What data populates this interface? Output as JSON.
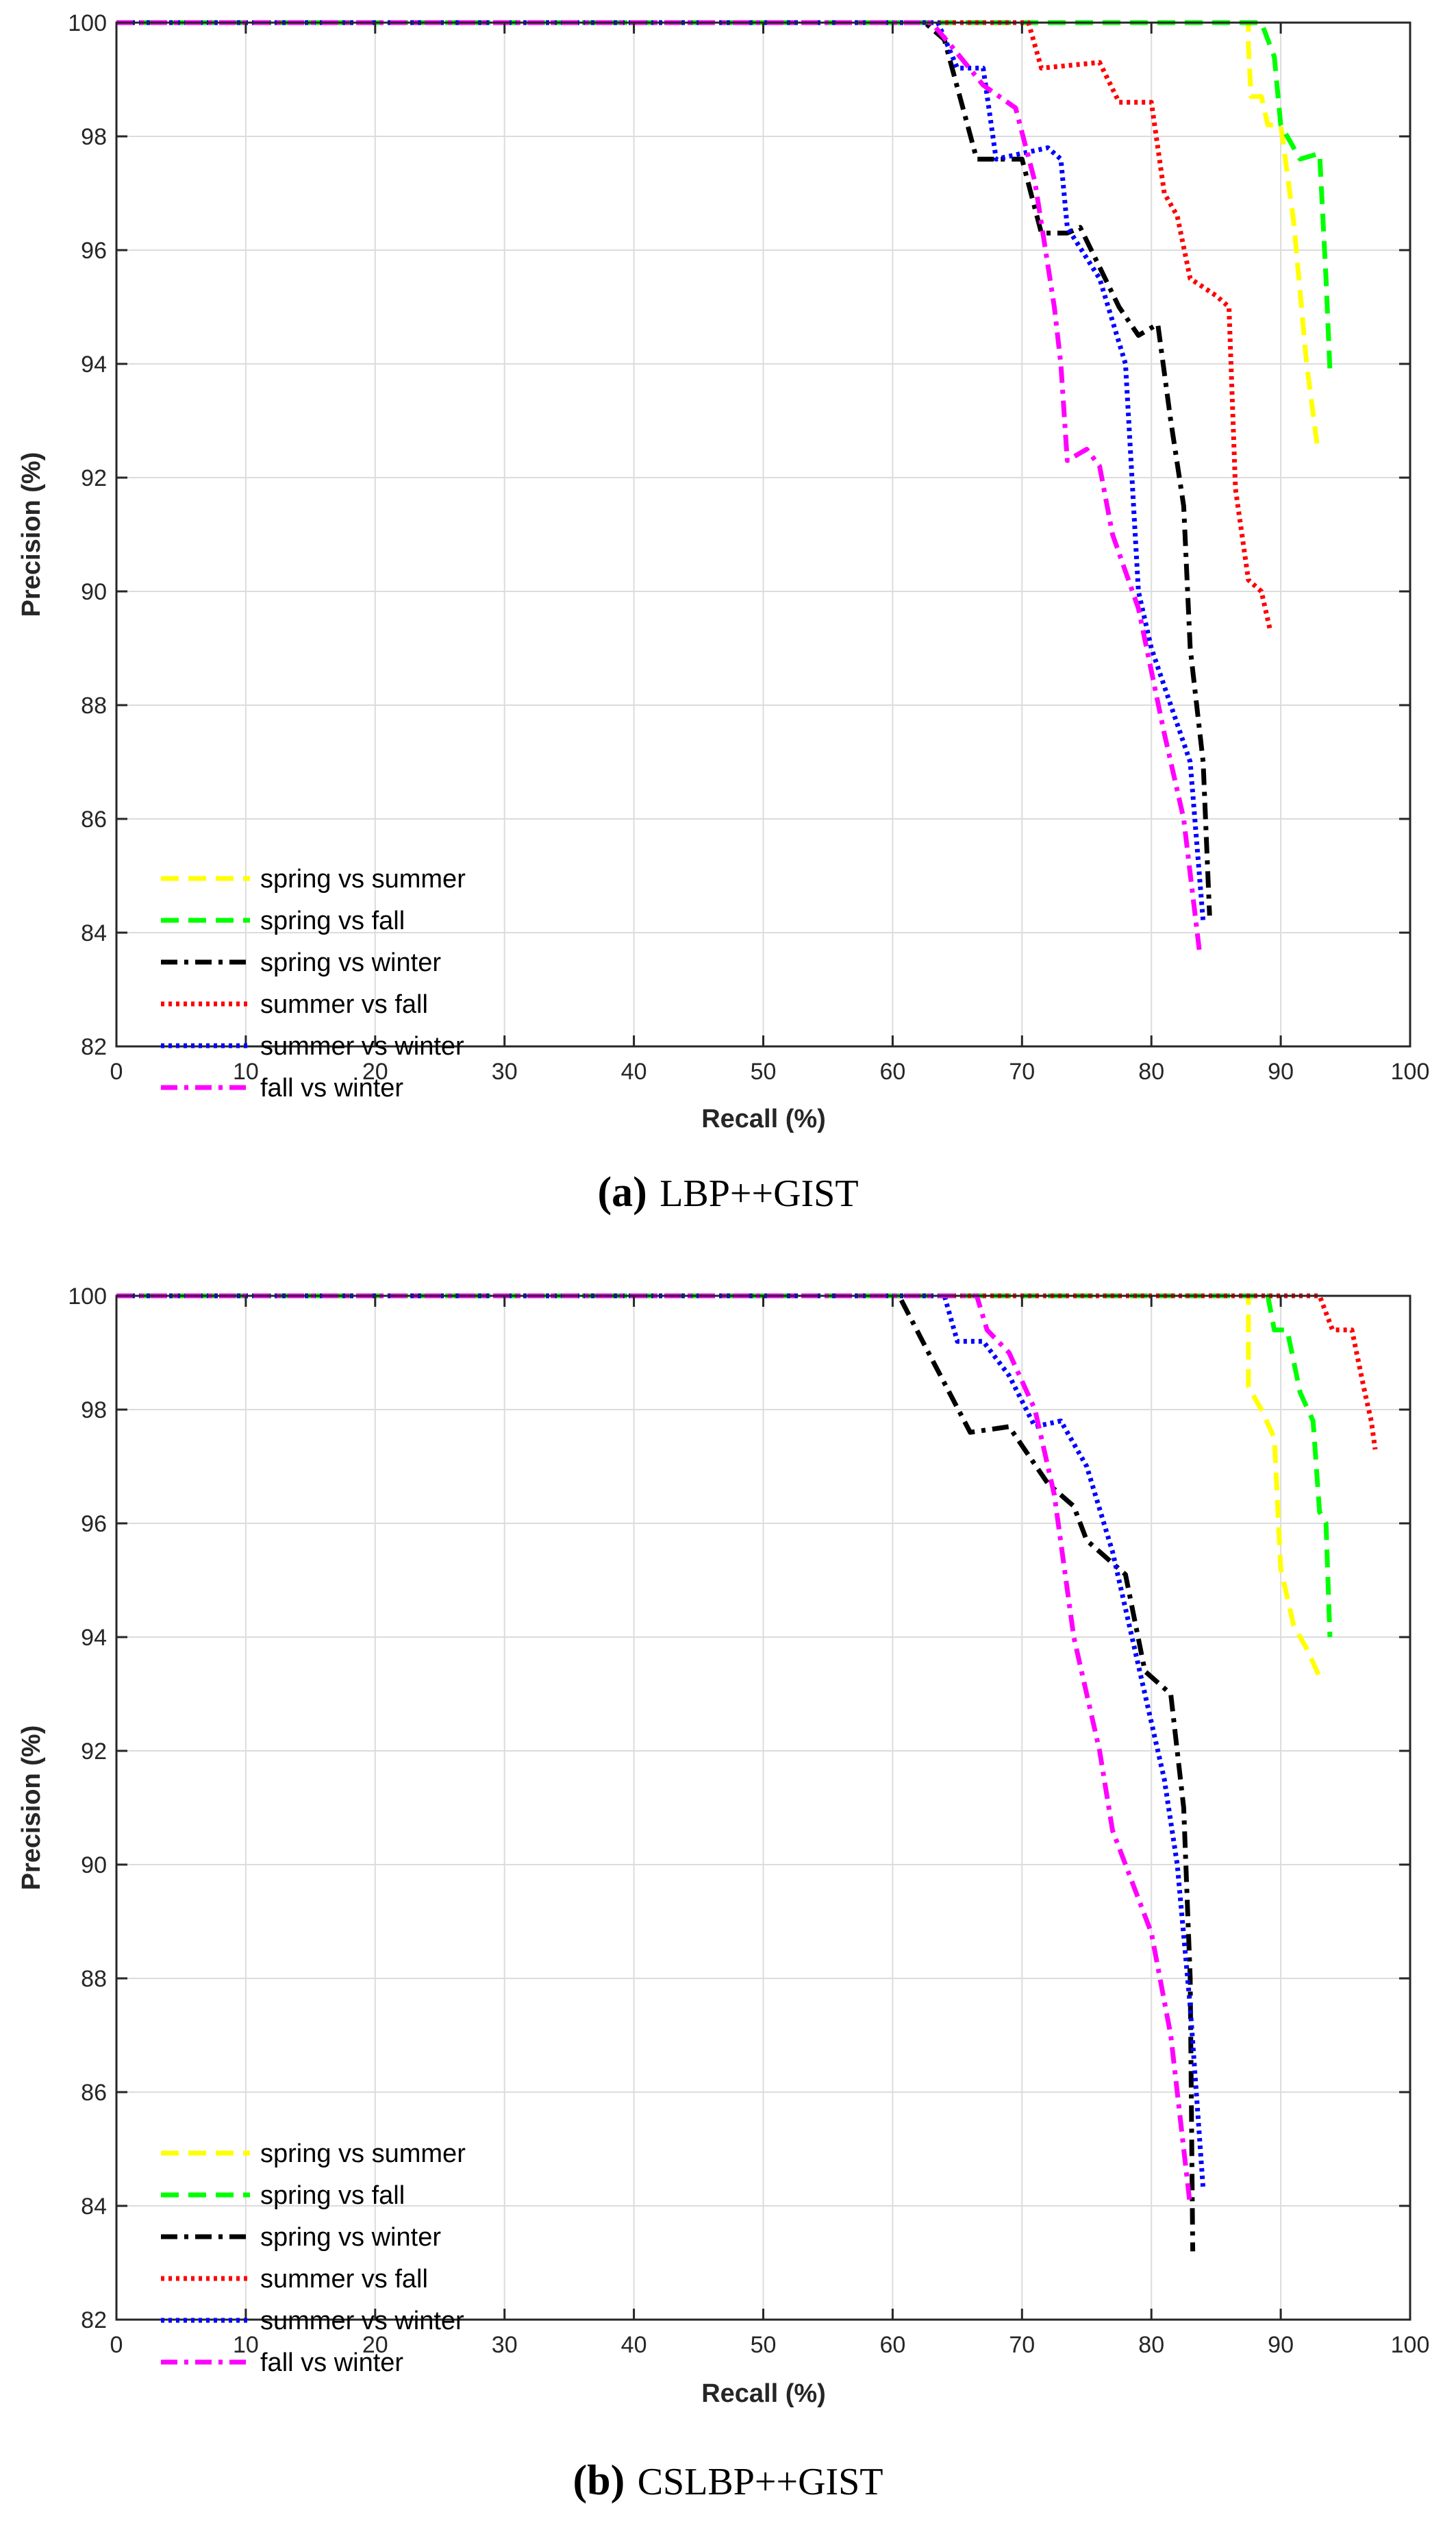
{
  "figure": {
    "captions": [
      {
        "label": "(a)",
        "text": "LBP++GIST"
      },
      {
        "label": "(b)",
        "text": "CSLBP++GIST"
      }
    ]
  },
  "colors": {
    "spring_vs_summer": "#ffff00",
    "spring_vs_fall": "#00ff00",
    "spring_vs_winter": "#000000",
    "summer_vs_fall": "#ff0000",
    "summer_vs_winter": "#0000ff",
    "fall_vs_winter": "#ff00ff"
  },
  "chart_data": [
    {
      "type": "line",
      "title": "LBP++GIST",
      "xlabel": "Recall (%)",
      "ylabel": "Precision (%)",
      "xlim": [
        0,
        100
      ],
      "ylim": [
        82,
        100
      ],
      "xticks": [
        0,
        10,
        20,
        30,
        40,
        50,
        60,
        70,
        80,
        90,
        100
      ],
      "yticks": [
        82,
        84,
        86,
        88,
        90,
        92,
        94,
        96,
        98,
        100
      ],
      "grid": true,
      "legend_position": "bottom-left",
      "series": [
        {
          "name": "spring vs summer",
          "style": "dashed",
          "color": "#ffff00",
          "points": [
            [
              0,
              100
            ],
            [
              87.5,
              100
            ],
            [
              87.5,
              99.6
            ],
            [
              87.7,
              98.7
            ],
            [
              88.5,
              98.7
            ],
            [
              89,
              98.2
            ],
            [
              90,
              98.2
            ],
            [
              91,
              96.5
            ],
            [
              92,
              94
            ],
            [
              92.8,
              92.6
            ]
          ]
        },
        {
          "name": "spring vs fall",
          "style": "dashed",
          "color": "#00ff00",
          "points": [
            [
              0,
              100
            ],
            [
              88.5,
              100
            ],
            [
              89.5,
              99.4
            ],
            [
              90,
              98.2
            ],
            [
              91,
              97.8
            ],
            [
              91.5,
              97.6
            ],
            [
              93,
              97.7
            ],
            [
              93.5,
              95.5
            ],
            [
              93.8,
              93.9
            ]
          ]
        },
        {
          "name": "spring vs winter",
          "style": "dashdot",
          "color": "#000000",
          "points": [
            [
              0,
              100
            ],
            [
              62.5,
              100
            ],
            [
              64,
              99.7
            ],
            [
              66.5,
              97.6
            ],
            [
              70,
              97.6
            ],
            [
              71.5,
              96.3
            ],
            [
              73.5,
              96.3
            ],
            [
              74.5,
              96.4
            ],
            [
              77.5,
              95
            ],
            [
              79,
              94.5
            ],
            [
              80.5,
              94.7
            ],
            [
              81.5,
              93
            ],
            [
              82.5,
              91.5
            ],
            [
              83,
              89
            ],
            [
              84,
              87
            ],
            [
              84.5,
              84.3
            ]
          ]
        },
        {
          "name": "summer vs fall",
          "style": "dotted",
          "color": "#ff0000",
          "points": [
            [
              0,
              100
            ],
            [
              70.5,
              100
            ],
            [
              71.5,
              99.2
            ],
            [
              76,
              99.3
            ],
            [
              77.5,
              98.6
            ],
            [
              80,
              98.6
            ],
            [
              81,
              97
            ],
            [
              82,
              96.6
            ],
            [
              83,
              95.5
            ],
            [
              85,
              95.2
            ],
            [
              86,
              95
            ],
            [
              86.5,
              91.8
            ],
            [
              87.5,
              90.2
            ],
            [
              88.5,
              90
            ],
            [
              89.2,
              89.3
            ]
          ]
        },
        {
          "name": "summer vs winter",
          "style": "dotted",
          "color": "#0000ff",
          "points": [
            [
              0,
              100
            ],
            [
              63.5,
              100
            ],
            [
              65,
              99.2
            ],
            [
              67,
              99.2
            ],
            [
              68,
              97.6
            ],
            [
              72,
              97.8
            ],
            [
              73,
              97.6
            ],
            [
              73.5,
              96.4
            ],
            [
              76,
              95.5
            ],
            [
              78,
              94
            ],
            [
              79,
              90
            ],
            [
              80,
              89
            ],
            [
              81.5,
              88
            ],
            [
              83,
              87
            ],
            [
              84,
              84.2
            ]
          ]
        },
        {
          "name": "fall vs winter",
          "style": "dashdot",
          "color": "#ff00ff",
          "points": [
            [
              0,
              100
            ],
            [
              63,
              100
            ],
            [
              64.5,
              99.6
            ],
            [
              67,
              98.9
            ],
            [
              69.5,
              98.5
            ],
            [
              71,
              97.2
            ],
            [
              72.5,
              95
            ],
            [
              73,
              94
            ],
            [
              73.5,
              92.3
            ],
            [
              75,
              92.5
            ],
            [
              76,
              92.2
            ],
            [
              77,
              91
            ],
            [
              79,
              89.7
            ],
            [
              81,
              87.5
            ],
            [
              82.5,
              86
            ],
            [
              83.7,
              83.7
            ]
          ]
        }
      ]
    },
    {
      "type": "line",
      "title": "CSLBP++GIST",
      "xlabel": "Recall (%)",
      "ylabel": "Precision (%)",
      "xlim": [
        0,
        100
      ],
      "ylim": [
        82,
        100
      ],
      "xticks": [
        0,
        10,
        20,
        30,
        40,
        50,
        60,
        70,
        80,
        90,
        100
      ],
      "yticks": [
        82,
        84,
        86,
        88,
        90,
        92,
        94,
        96,
        98,
        100
      ],
      "grid": true,
      "legend_position": "bottom-left",
      "series": [
        {
          "name": "spring vs summer",
          "style": "dashed",
          "color": "#ffff00",
          "points": [
            [
              0,
              100
            ],
            [
              87.5,
              100
            ],
            [
              87.5,
              98.4
            ],
            [
              88.5,
              98
            ],
            [
              89.5,
              97.5
            ],
            [
              90,
              95.2
            ],
            [
              91,
              94.2
            ],
            [
              92,
              93.8
            ],
            [
              93,
              93.3
            ]
          ]
        },
        {
          "name": "spring vs fall",
          "style": "dashed",
          "color": "#00ff00",
          "points": [
            [
              0,
              100
            ],
            [
              89,
              100
            ],
            [
              89.5,
              99.4
            ],
            [
              90.5,
              99.4
            ],
            [
              91.5,
              98.3
            ],
            [
              92.5,
              97.8
            ],
            [
              93,
              96.2
            ],
            [
              93.5,
              96
            ],
            [
              93.8,
              94
            ]
          ]
        },
        {
          "name": "spring vs winter",
          "style": "dashdot",
          "color": "#000000",
          "points": [
            [
              0,
              100
            ],
            [
              60.5,
              100
            ],
            [
              63,
              98.9
            ],
            [
              66,
              97.6
            ],
            [
              69,
              97.7
            ],
            [
              72,
              96.7
            ],
            [
              74,
              96.3
            ],
            [
              75,
              95.7
            ],
            [
              78,
              95.1
            ],
            [
              79.5,
              93.4
            ],
            [
              81.5,
              93
            ],
            [
              82.5,
              91
            ],
            [
              83,
              88
            ],
            [
              83.2,
              83.2
            ]
          ]
        },
        {
          "name": "summer vs fall",
          "style": "dotted",
          "color": "#ff0000",
          "points": [
            [
              0,
              100
            ],
            [
              93,
              100
            ],
            [
              94,
              99.4
            ],
            [
              95.5,
              99.4
            ],
            [
              96.5,
              98.3
            ],
            [
              97,
              97.8
            ],
            [
              97.3,
              97.3
            ]
          ]
        },
        {
          "name": "summer vs winter",
          "style": "dotted",
          "color": "#0000ff",
          "points": [
            [
              0,
              100
            ],
            [
              64,
              100
            ],
            [
              65,
              99.2
            ],
            [
              67,
              99.2
            ],
            [
              69,
              98.6
            ],
            [
              71,
              97.7
            ],
            [
              73,
              97.8
            ],
            [
              75,
              97
            ],
            [
              77,
              95.5
            ],
            [
              79,
              93.5
            ],
            [
              81,
              91.5
            ],
            [
              82,
              90
            ],
            [
              83,
              87.5
            ],
            [
              84,
              84.3
            ]
          ]
        },
        {
          "name": "fall vs winter",
          "style": "dashdot",
          "color": "#ff00ff",
          "points": [
            [
              0,
              100
            ],
            [
              66.5,
              100
            ],
            [
              67.3,
              99.4
            ],
            [
              69,
              99
            ],
            [
              71,
              98
            ],
            [
              72.5,
              96.5
            ],
            [
              74,
              94
            ],
            [
              76,
              92
            ],
            [
              77,
              90.6
            ],
            [
              80,
              88.8
            ],
            [
              81.5,
              87
            ],
            [
              83,
              84
            ]
          ]
        }
      ]
    }
  ]
}
